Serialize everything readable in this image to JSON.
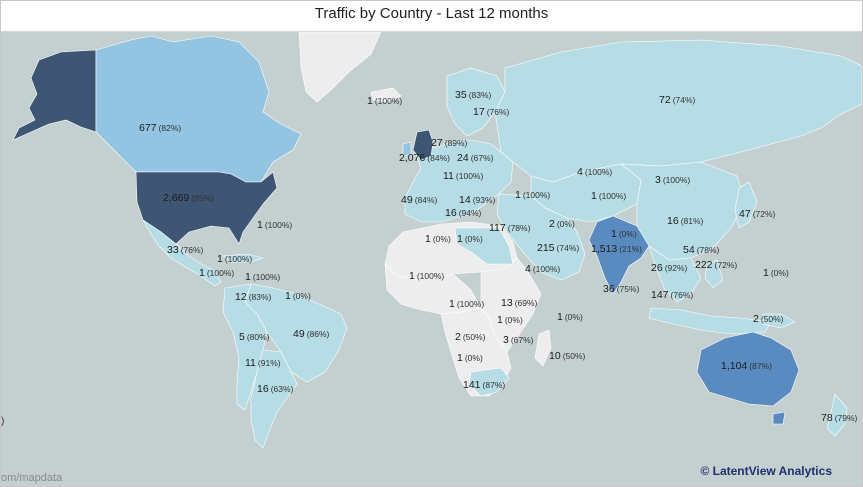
{
  "title": "Traffic by Country - Last 12 months",
  "attribution": "om/mapdata",
  "edge_text": ")",
  "brand": "© LatentView Analytics",
  "colors": {
    "ocean": "#c4cfd0",
    "land_no_data": "#ededed",
    "low": "#b6dce6",
    "mid": "#93c5e3",
    "high": "#5a8bc0",
    "highest": "#3e5673"
  },
  "labels": [
    {
      "id": "us",
      "value": "2,669",
      "pct": "(85%)"
    },
    {
      "id": "canada",
      "value": "677",
      "pct": "(82%)"
    },
    {
      "id": "greenland",
      "value": "1",
      "pct": "(100%)"
    },
    {
      "id": "bermuda",
      "value": "1",
      "pct": "(100%)"
    },
    {
      "id": "mexico",
      "value": "33",
      "pct": "(76%)"
    },
    {
      "id": "cuba",
      "value": "1",
      "pct": "(100%)"
    },
    {
      "id": "central1",
      "value": "1",
      "pct": "(100%)"
    },
    {
      "id": "central2",
      "value": "1",
      "pct": "(100%)"
    },
    {
      "id": "colombia",
      "value": "12",
      "pct": "(83%)"
    },
    {
      "id": "venezuela",
      "value": "1",
      "pct": "(0%)"
    },
    {
      "id": "peru",
      "value": "5",
      "pct": "(80%)"
    },
    {
      "id": "brazil",
      "value": "49",
      "pct": "(86%)"
    },
    {
      "id": "chile",
      "value": "11",
      "pct": "(91%)"
    },
    {
      "id": "argentina",
      "value": "16",
      "pct": "(63%)"
    },
    {
      "id": "norway",
      "value": "35",
      "pct": "(83%)"
    },
    {
      "id": "sweden",
      "value": "17",
      "pct": "(76%)"
    },
    {
      "id": "denmark",
      "value": "27",
      "pct": "(89%)"
    },
    {
      "id": "uk",
      "value": "2,076",
      "pct": "(84%)"
    },
    {
      "id": "germany",
      "value": "24",
      "pct": "(67%)"
    },
    {
      "id": "france",
      "value": "11",
      "pct": "(100%)"
    },
    {
      "id": "spain",
      "value": "49",
      "pct": "(84%)"
    },
    {
      "id": "italy",
      "value": "14",
      "pct": "(93%)"
    },
    {
      "id": "greece",
      "value": "16",
      "pct": "(94%)"
    },
    {
      "id": "algeria",
      "value": "1",
      "pct": "(0%)"
    },
    {
      "id": "libya",
      "value": "1",
      "pct": "(0%)"
    },
    {
      "id": "west_africa",
      "value": "1",
      "pct": "(100%)"
    },
    {
      "id": "turkey",
      "value": "1",
      "pct": "(100%)"
    },
    {
      "id": "egypt",
      "value": "117",
      "pct": "(78%)"
    },
    {
      "id": "russia",
      "value": "72",
      "pct": "(74%)"
    },
    {
      "id": "kazakhstan",
      "value": "4",
      "pct": "(100%)"
    },
    {
      "id": "central_asia",
      "value": "1",
      "pct": "(100%)"
    },
    {
      "id": "mongolia",
      "value": "3",
      "pct": "(100%)"
    },
    {
      "id": "iran",
      "value": "2",
      "pct": "(0%)"
    },
    {
      "id": "saudi",
      "value": "215",
      "pct": "(74%)"
    },
    {
      "id": "yemen",
      "value": "4",
      "pct": "(100%)"
    },
    {
      "id": "nepal",
      "value": "1",
      "pct": "(0%)"
    },
    {
      "id": "india",
      "value": "1,513",
      "pct": "(21%)"
    },
    {
      "id": "srilanka",
      "value": "36",
      "pct": "(75%)"
    },
    {
      "id": "china",
      "value": "16",
      "pct": "(81%)"
    },
    {
      "id": "japan",
      "value": "47",
      "pct": "(72%)"
    },
    {
      "id": "hongkong",
      "value": "54",
      "pct": "(78%)"
    },
    {
      "id": "thailand",
      "value": "26",
      "pct": "(92%)"
    },
    {
      "id": "philippines",
      "value": "222",
      "pct": "(72%)"
    },
    {
      "id": "guam",
      "value": "1",
      "pct": "(0%)"
    },
    {
      "id": "indonesia",
      "value": "147",
      "pct": "(76%)"
    },
    {
      "id": "nigeria",
      "value": "1",
      "pct": "(100%)"
    },
    {
      "id": "kenya",
      "value": "13",
      "pct": "(69%)"
    },
    {
      "id": "tanzania",
      "value": "1",
      "pct": "(0%)"
    },
    {
      "id": "seychelles",
      "value": "1",
      "pct": "(0%)"
    },
    {
      "id": "angola",
      "value": "2",
      "pct": "(50%)"
    },
    {
      "id": "mozambique",
      "value": "3",
      "pct": "(67%)"
    },
    {
      "id": "namibia",
      "value": "1",
      "pct": "(0%)"
    },
    {
      "id": "mauritius",
      "value": "10",
      "pct": "(50%)"
    },
    {
      "id": "southafrica",
      "value": "141",
      "pct": "(87%)"
    },
    {
      "id": "png",
      "value": "2",
      "pct": "(50%)"
    },
    {
      "id": "australia",
      "value": "1,104",
      "pct": "(87%)"
    },
    {
      "id": "newzealand",
      "value": "78",
      "pct": "(79%)"
    }
  ]
}
